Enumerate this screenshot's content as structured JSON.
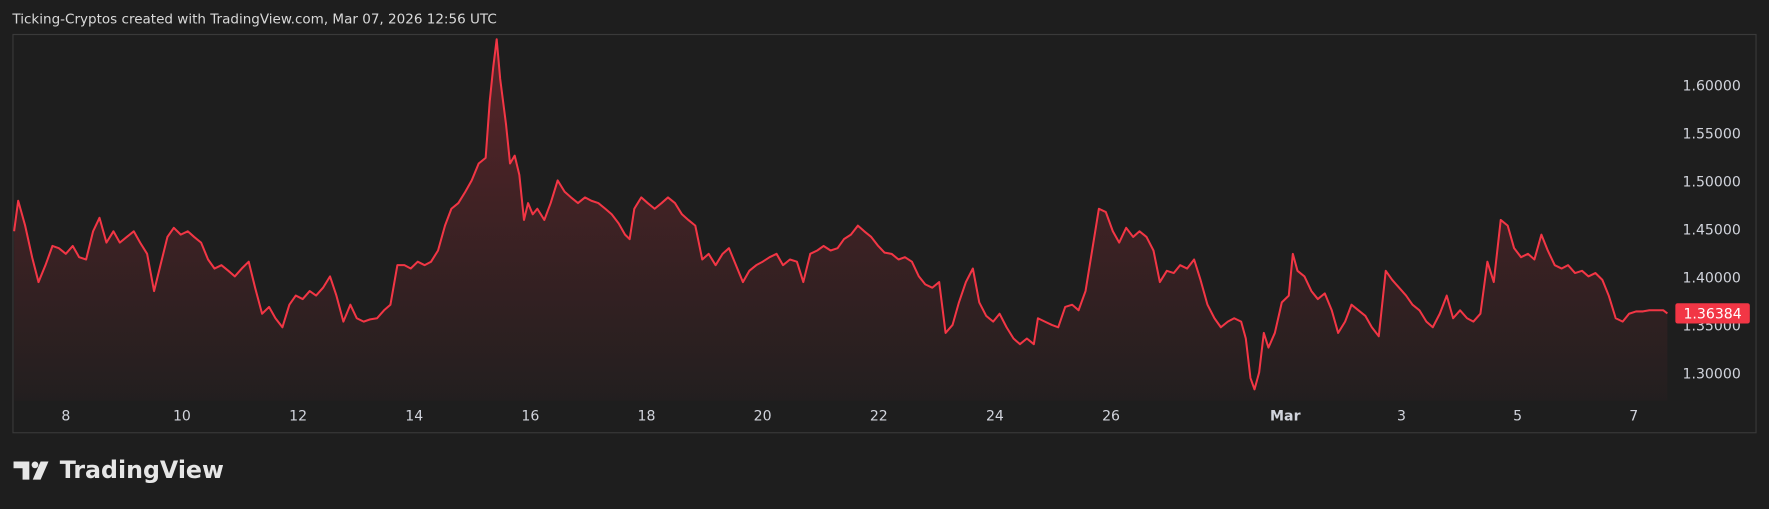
{
  "header": "Ticking-Cryptos created with TradingView.com, Mar 07, 2026 12:56 UTC",
  "brand": "TradingView",
  "chart_data": {
    "type": "area",
    "color": "#f23645",
    "x": [
      7.11,
      7.18,
      7.3,
      7.42,
      7.53,
      7.65,
      7.77,
      7.88,
      8.0,
      8.12,
      8.23,
      8.35,
      8.47,
      8.58,
      8.7,
      8.82,
      8.93,
      9.05,
      9.17,
      9.28,
      9.4,
      9.52,
      9.63,
      9.75,
      9.86,
      9.98,
      10.1,
      10.21,
      10.33,
      10.45,
      10.56,
      10.68,
      10.8,
      10.91,
      11.03,
      11.15,
      11.26,
      11.38,
      11.5,
      11.61,
      11.73,
      11.85,
      11.96,
      12.08,
      12.2,
      12.31,
      12.43,
      12.55,
      12.66,
      12.78,
      12.9,
      13.01,
      13.13,
      13.24,
      13.36,
      13.48,
      13.59,
      13.71,
      13.83,
      13.94,
      14.06,
      14.18,
      14.29,
      14.41,
      14.53,
      14.64,
      14.76,
      14.88,
      14.99,
      15.11,
      15.23,
      15.3,
      15.36,
      15.42,
      15.48,
      15.58,
      15.65,
      15.73,
      15.81,
      15.89,
      15.96,
      16.04,
      16.12,
      16.24,
      16.35,
      16.47,
      16.59,
      16.7,
      16.82,
      16.94,
      17.05,
      17.17,
      17.29,
      17.4,
      17.52,
      17.63,
      17.71,
      17.79,
      17.91,
      18.02,
      18.14,
      18.26,
      18.37,
      18.49,
      18.61,
      18.72,
      18.84,
      18.96,
      19.07,
      19.19,
      19.31,
      19.42,
      19.54,
      19.66,
      19.77,
      19.89,
      20.0,
      20.12,
      20.24,
      20.35,
      20.47,
      20.59,
      20.7,
      20.82,
      20.94,
      21.05,
      21.17,
      21.29,
      21.4,
      21.52,
      21.64,
      21.75,
      21.87,
      21.99,
      22.1,
      22.22,
      22.34,
      22.45,
      22.57,
      22.69,
      22.8,
      22.92,
      23.04,
      23.15,
      23.27,
      23.38,
      23.5,
      23.62,
      23.73,
      23.85,
      23.97,
      24.08,
      24.2,
      24.32,
      24.43,
      24.55,
      24.67,
      24.74,
      24.86,
      24.98,
      25.09,
      25.21,
      25.33,
      25.44,
      25.56,
      25.68,
      25.79,
      25.91,
      26.03,
      26.14,
      26.26,
      26.38,
      26.49,
      26.61,
      26.73,
      26.84,
      26.96,
      27.08,
      27.19,
      27.31,
      27.43,
      27.54,
      27.66,
      27.78,
      27.89,
      28.01,
      28.12,
      28.24,
      28.32,
      28.4,
      28.47,
      28.55,
      28.63,
      28.71,
      28.82,
      28.94,
      29.06,
      29.13,
      29.21,
      29.33,
      29.45,
      29.56,
      29.68,
      29.8,
      29.91,
      30.03,
      30.14,
      30.26,
      30.38,
      30.49,
      30.61,
      30.73,
      30.84,
      30.96,
      31.08,
      31.19,
      31.31,
      31.43,
      31.54,
      31.66,
      31.78,
      31.89,
      32.01,
      32.13,
      32.24,
      32.36,
      32.48,
      32.59,
      32.71,
      32.83,
      32.94,
      33.06,
      33.18,
      33.29,
      33.41,
      33.52,
      33.64,
      33.76,
      33.87,
      33.99,
      34.11,
      34.22,
      34.34,
      34.46,
      34.57,
      34.69,
      34.81,
      34.92,
      35.04,
      35.16,
      35.27,
      35.39,
      35.51,
      35.58
    ],
    "values": [
      1.4494,
      1.4812,
      1.4553,
      1.4224,
      1.3965,
      1.4141,
      1.4341,
      1.4318,
      1.4259,
      1.4341,
      1.4224,
      1.42,
      1.4494,
      1.4635,
      1.4376,
      1.4494,
      1.4376,
      1.4435,
      1.4494,
      1.4376,
      1.4259,
      1.3871,
      1.4141,
      1.4435,
      1.453,
      1.4459,
      1.4494,
      1.4435,
      1.4376,
      1.42,
      1.4106,
      1.4141,
      1.4082,
      1.4024,
      1.4106,
      1.4177,
      1.3906,
      1.3635,
      1.3706,
      1.3588,
      1.3494,
      1.3729,
      1.3824,
      1.3788,
      1.3871,
      1.3824,
      1.3906,
      1.4024,
      1.3824,
      1.3553,
      1.3729,
      1.3588,
      1.3553,
      1.3576,
      1.3588,
      1.3671,
      1.3729,
      1.4141,
      1.4141,
      1.4106,
      1.4177,
      1.4141,
      1.4177,
      1.4294,
      1.4553,
      1.4729,
      1.4788,
      1.4906,
      1.5024,
      1.52,
      1.5259,
      1.5847,
      1.62,
      1.6494,
      1.6082,
      1.5612,
      1.52,
      1.5282,
      1.5082,
      1.4612,
      1.4788,
      1.4671,
      1.4729,
      1.4612,
      1.4788,
      1.5024,
      1.4906,
      1.4847,
      1.4788,
      1.4847,
      1.4812,
      1.4788,
      1.4729,
      1.4671,
      1.4576,
      1.4459,
      1.4412,
      1.4729,
      1.4847,
      1.4788,
      1.4729,
      1.4788,
      1.4847,
      1.4788,
      1.4671,
      1.4612,
      1.4553,
      1.42,
      1.4259,
      1.4141,
      1.4259,
      1.4318,
      1.4141,
      1.3965,
      1.4082,
      1.4141,
      1.4177,
      1.4224,
      1.4259,
      1.4141,
      1.42,
      1.4177,
      1.3965,
      1.4259,
      1.4294,
      1.4341,
      1.4294,
      1.4318,
      1.4412,
      1.4459,
      1.4553,
      1.4494,
      1.4435,
      1.4341,
      1.4271,
      1.4259,
      1.42,
      1.4224,
      1.4177,
      1.4024,
      1.3941,
      1.3906,
      1.3965,
      1.3435,
      1.3518,
      1.3753,
      1.3965,
      1.4106,
      1.3753,
      1.3612,
      1.3553,
      1.3635,
      1.3494,
      1.3377,
      1.3318,
      1.3377,
      1.3318,
      1.3588,
      1.3553,
      1.3518,
      1.3494,
      1.3706,
      1.3729,
      1.3671,
      1.3871,
      1.4318,
      1.4729,
      1.4694,
      1.4494,
      1.4376,
      1.453,
      1.4435,
      1.4494,
      1.4435,
      1.4294,
      1.3965,
      1.4082,
      1.4059,
      1.4141,
      1.4106,
      1.42,
      1.3988,
      1.3729,
      1.3588,
      1.3494,
      1.3553,
      1.3588,
      1.3553,
      1.3377,
      1.2965,
      1.2847,
      1.3024,
      1.3435,
      1.3282,
      1.3435,
      1.3753,
      1.3824,
      1.4259,
      1.4082,
      1.4024,
      1.3871,
      1.3788,
      1.3847,
      1.3671,
      1.3435,
      1.3553,
      1.3729,
      1.3671,
      1.3612,
      1.3494,
      1.34,
      1.4082,
      1.3988,
      1.3906,
      1.3824,
      1.3729,
      1.3671,
      1.3553,
      1.3494,
      1.3635,
      1.3824,
      1.3588,
      1.3671,
      1.3588,
      1.3553,
      1.3635,
      1.4177,
      1.3965,
      1.4612,
      1.4553,
      1.4318,
      1.4224,
      1.4259,
      1.42,
      1.4459,
      1.4294,
      1.4141,
      1.4106,
      1.4141,
      1.4059,
      1.4082,
      1.4024,
      1.4059,
      1.3988,
      1.3824,
      1.3588,
      1.3553,
      1.3635,
      1.3659,
      1.3659,
      1.3671,
      1.3671,
      1.3671,
      1.36384
    ],
    "xlim": [
      7.1,
      35.62
    ],
    "xticks": [
      8,
      10,
      12,
      14,
      16,
      18,
      20,
      22,
      24,
      26,
      {
        "value": 29,
        "label": "Mar"
      },
      {
        "value": 31,
        "label": "3"
      },
      {
        "value": 33,
        "label": "5"
      },
      {
        "value": 35,
        "label": "7"
      }
    ],
    "ylim": [
      1.273,
      1.655
    ],
    "yticks": [
      {
        "value": 1.3,
        "label": "1.30000"
      },
      {
        "value": 1.35,
        "label": "1.35000"
      },
      {
        "value": 1.4,
        "label": "1.40000"
      },
      {
        "value": 1.45,
        "label": "1.45000"
      },
      {
        "value": 1.5,
        "label": "1.50000"
      },
      {
        "value": 1.55,
        "label": "1.55000"
      },
      {
        "value": 1.6,
        "label": "1.60000"
      }
    ],
    "last_price": 1.36384
  }
}
